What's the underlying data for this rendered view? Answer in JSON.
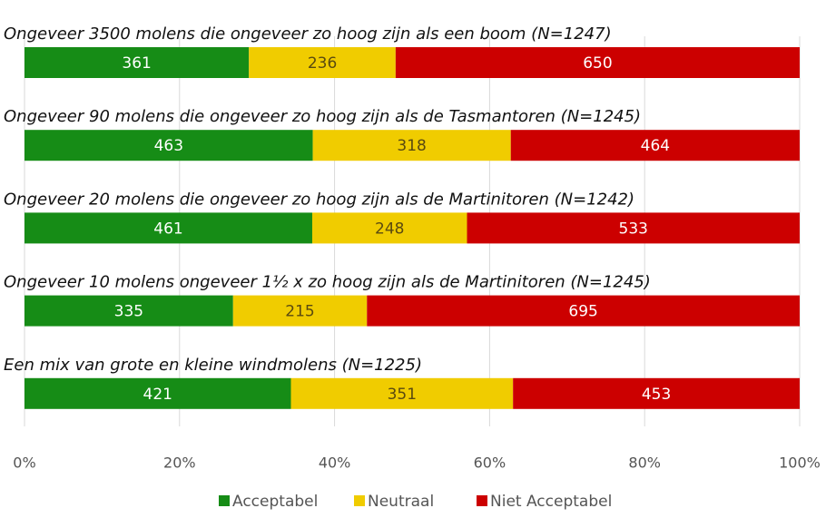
{
  "chart_data": {
    "type": "bar",
    "orientation": "horizontal",
    "stacking": "percent",
    "categories": [
      "Ongeveer 3500 molens die ongeveer zo hoog zijn als een boom (N=1247)",
      "Ongeveer 90 molens die ongeveer zo hoog zijn als de Tasmantoren (N=1245)",
      "Ongeveer 20 molens die ongeveer zo hoog zijn als de Martinitoren (N=1242)",
      "Ongeveer 10 molens ongeveer 1½ x zo hoog zijn als de Martinitoren (N=1245)",
      "Een mix van grote en kleine windmolens (N=1225)"
    ],
    "series": [
      {
        "name": "Acceptabel",
        "color": "#168c16",
        "label_color": "#ffffff",
        "values": [
          361,
          463,
          461,
          335,
          421
        ]
      },
      {
        "name": "Neutraal",
        "color": "#f0cc00",
        "label_color": "#5a4a10",
        "values": [
          236,
          318,
          248,
          215,
          351
        ]
      },
      {
        "name": "Niet Acceptabel",
        "color": "#cc0000",
        "label_color": "#ffffff",
        "values": [
          650,
          464,
          533,
          695,
          453
        ]
      }
    ],
    "xlim": [
      0,
      100
    ],
    "xticks": [
      {
        "value": 0,
        "label": "0%"
      },
      {
        "value": 20,
        "label": "20%"
      },
      {
        "value": 40,
        "label": "40%"
      },
      {
        "value": 60,
        "label": "60%"
      },
      {
        "value": 80,
        "label": "80%"
      },
      {
        "value": 100,
        "label": "100%"
      }
    ],
    "grid": true,
    "legend": "bottom"
  }
}
